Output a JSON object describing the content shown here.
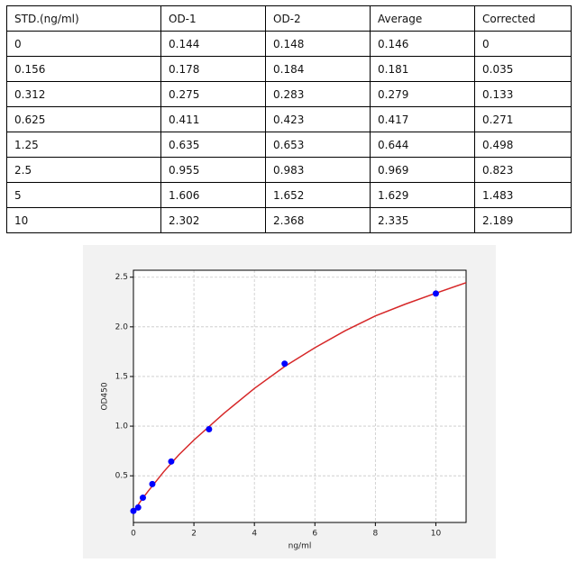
{
  "table": {
    "header": [
      "STD.(ng/ml)",
      "OD-1",
      "OD-2",
      "Average",
      "Corrected"
    ],
    "rows": [
      [
        "0",
        "0.144",
        "0.148",
        "0.146",
        "0"
      ],
      [
        "0.156",
        "0.178",
        "0.184",
        "0.181",
        "0.035"
      ],
      [
        "0.312",
        "0.275",
        "0.283",
        "0.279",
        "0.133"
      ],
      [
        "0.625",
        "0.411",
        "0.423",
        "0.417",
        "0.271"
      ],
      [
        "1.25",
        "0.635",
        "0.653",
        "0.644",
        "0.498"
      ],
      [
        "2.5",
        "0.955",
        "0.983",
        "0.969",
        "0.823"
      ],
      [
        "5",
        "1.606",
        "1.652",
        "1.629",
        "1.483"
      ],
      [
        "10",
        "2.302",
        "2.368",
        "2.335",
        "2.189"
      ]
    ]
  },
  "chart_data": {
    "type": "scatter",
    "xlabel": "ng/ml",
    "ylabel": "OD450",
    "x": [
      0,
      0.156,
      0.312,
      0.625,
      1.25,
      2.5,
      5,
      10
    ],
    "series": [
      {
        "color": "#0000ff",
        "values": [
          0.146,
          0.181,
          0.279,
          0.417,
          0.644,
          0.969,
          1.629,
          2.335
        ]
      }
    ],
    "curve": {
      "color": "#d62728",
      "x": [
        0,
        0.25,
        0.5,
        1,
        1.5,
        2,
        3,
        4,
        5,
        6,
        7,
        8,
        9,
        10,
        11
      ],
      "values": [
        0.14,
        0.25,
        0.35,
        0.54,
        0.71,
        0.86,
        1.13,
        1.38,
        1.6,
        1.79,
        1.96,
        2.11,
        2.23,
        2.34,
        2.445
      ]
    },
    "xlim": [
      0,
      11
    ],
    "ylim": [
      0.03,
      2.57
    ],
    "xticks": [
      0,
      2,
      4,
      6,
      8,
      10
    ],
    "yticks": [
      0.5,
      {
        "value": 1,
        "label": "1.0"
      },
      1.5,
      {
        "value": 2,
        "label": "2.0"
      },
      2.5
    ],
    "grid": true
  }
}
